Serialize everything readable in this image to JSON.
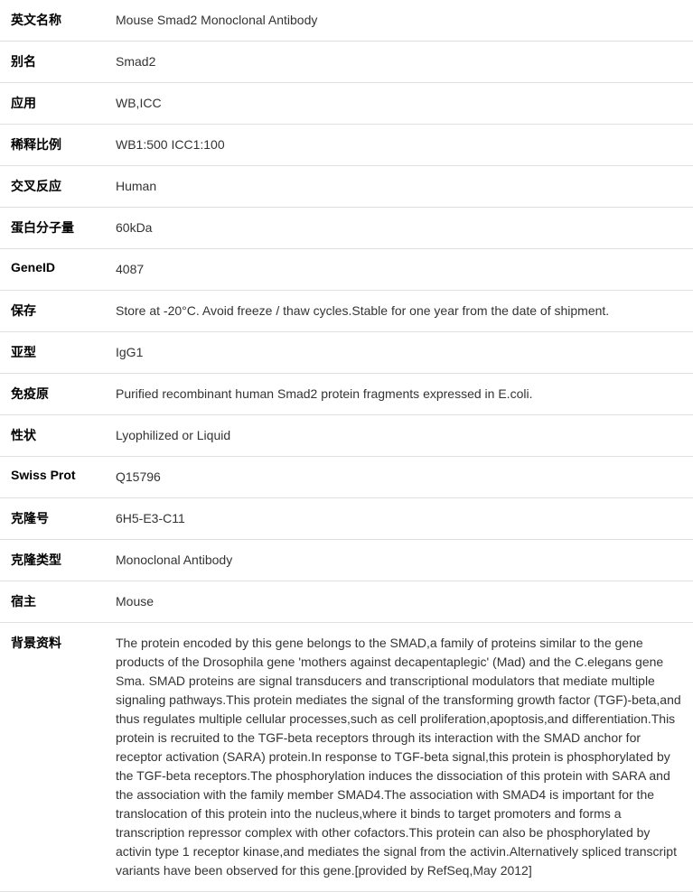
{
  "rows": [
    {
      "label": "英文名称",
      "value": "Mouse Smad2 Monoclonal Antibody"
    },
    {
      "label": "别名",
      "value": "Smad2"
    },
    {
      "label": "应用",
      "value": "WB,ICC"
    },
    {
      "label": "稀释比例",
      "value": "WB1:500 ICC1:100"
    },
    {
      "label": "交叉反应",
      "value": "Human"
    },
    {
      "label": "蛋白分子量",
      "value": "60kDa"
    },
    {
      "label": "GeneID",
      "value": "4087"
    },
    {
      "label": "保存",
      "value": "Store at -20°C. Avoid freeze / thaw cycles.Stable for one year from the date of shipment."
    },
    {
      "label": "亚型",
      "value": "IgG1"
    },
    {
      "label": "免疫原",
      "value": "Purified recombinant human Smad2 protein fragments expressed in E.coli."
    },
    {
      "label": "性状",
      "value": "Lyophilized or Liquid"
    },
    {
      "label": "Swiss Prot",
      "value": "Q15796"
    },
    {
      "label": "克隆号",
      "value": "6H5-E3-C11"
    },
    {
      "label": "克隆类型",
      "value": "Monoclonal Antibody"
    },
    {
      "label": "宿主",
      "value": "Mouse"
    },
    {
      "label": "背景资料",
      "value": "The protein encoded by this gene belongs to the SMAD,a family of proteins similar to the gene products of the Drosophila gene 'mothers against decapentaplegic' (Mad) and the C.elegans gene Sma. SMAD proteins are signal transducers and transcriptional modulators that mediate multiple signaling pathways.This protein mediates the signal of the transforming growth factor (TGF)-beta,and thus regulates multiple cellular processes,such as cell proliferation,apoptosis,and differentiation.This protein is recruited to the TGF-beta receptors through its interaction with the SMAD anchor for receptor activation (SARA) protein.In response to TGF-beta signal,this protein is phosphorylated by the TGF-beta receptors.The phosphorylation induces the dissociation of this protein with SARA and the association with the family member SMAD4.The association with SMAD4 is important for the translocation of this protein into the nucleus,where it binds to target promoters and forms a transcription repressor complex with other cofactors.This protein can also be phosphorylated by activin type 1 receptor kinase,and mediates the signal from the activin.Alternatively spliced transcript variants have been observed for this gene.[provided by RefSeq,May 2012]"
    }
  ]
}
